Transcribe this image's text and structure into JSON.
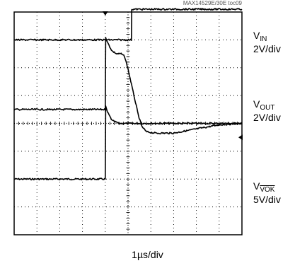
{
  "doc_id": "MAX14529E/30E toc09",
  "timebase_label": "1µs/div",
  "chart_data": {
    "type": "line",
    "title": "",
    "grid": true,
    "x_divisions": 10,
    "y_divisions": 8,
    "x_unit": "µs",
    "x_per_div": 1,
    "trigger_x_div": 4.0,
    "series": [
      {
        "name": "VIN",
        "label_main": "V",
        "label_sub": "IN",
        "scale_label": "2V/div",
        "ground_div": 6.0,
        "x": [
          0,
          1,
          2,
          3,
          4.0,
          4.02,
          4.1,
          4.3,
          4.6,
          5,
          6,
          7,
          8,
          9,
          10
        ],
        "y": [
          0,
          0,
          0,
          0,
          0,
          2.6,
          2.4,
          2.1,
          2.0,
          2.0,
          2.0,
          2.0,
          2.0,
          2.0,
          2.0
        ]
      },
      {
        "name": "VOUT",
        "label_main": "V",
        "label_sub": "OUT",
        "scale_label": "2V/div",
        "ground_div": 3.5,
        "x": [
          0,
          1,
          2,
          3,
          4.0,
          4.02,
          4.1,
          4.3,
          4.5,
          4.7,
          4.85,
          5.0,
          5.15,
          5.3,
          5.45,
          5.6,
          5.8,
          6.2,
          7,
          8,
          9,
          10
        ],
        "y": [
          0,
          0,
          0,
          0,
          0,
          2.6,
          2.4,
          2.1,
          2.0,
          2.0,
          1.9,
          1.45,
          0.9,
          0.35,
          -0.2,
          -0.6,
          -0.8,
          -0.85,
          -0.85,
          -0.7,
          -0.55,
          -0.5
        ]
      },
      {
        "name": "VOK",
        "label_main": "V",
        "label_sub": "VOK",
        "label_sub_overline": true,
        "scale_label": "5V/div",
        "ground_div": 1.0,
        "x": [
          0,
          1,
          2,
          3,
          4,
          5.15,
          5.16,
          6,
          7,
          8,
          9,
          10
        ],
        "y": [
          0,
          0,
          0,
          0,
          0,
          0,
          1.1,
          1.1,
          1.1,
          1.1,
          1.1,
          1.1
        ]
      }
    ]
  }
}
